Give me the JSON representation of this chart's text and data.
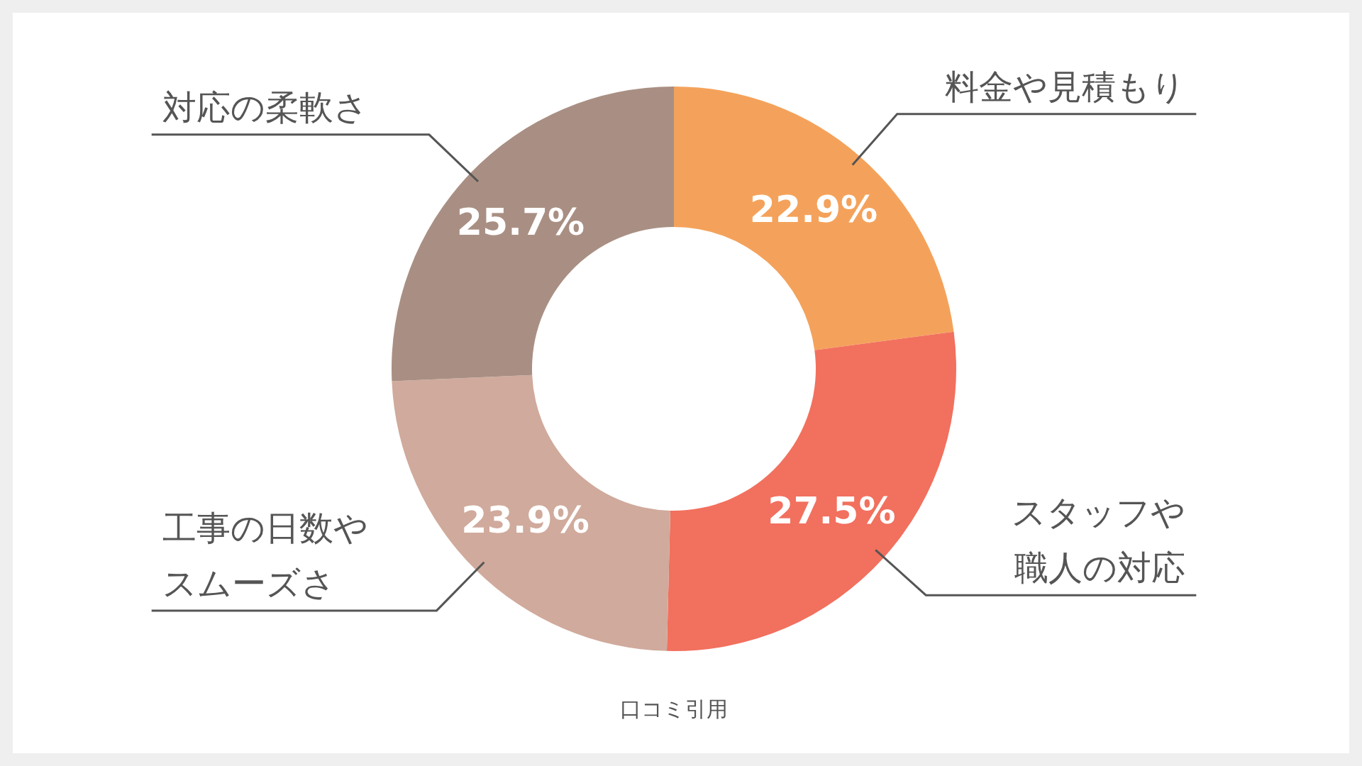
{
  "chart_data": {
    "type": "donut",
    "categories": [
      "料金や見積もり",
      "スタッフや職人の対応",
      "工事の日数やスムーズさ",
      "対応の柔軟さ"
    ],
    "values": [
      22.9,
      27.5,
      23.9,
      25.7
    ],
    "colors": [
      "#f4a25b",
      "#f2705e",
      "#d0aa9c",
      "#a98f83"
    ],
    "value_labels": [
      "22.9%",
      "27.5%",
      "23.9%",
      "25.7%"
    ],
    "annotations": [
      "口コミ引用"
    ]
  }
}
